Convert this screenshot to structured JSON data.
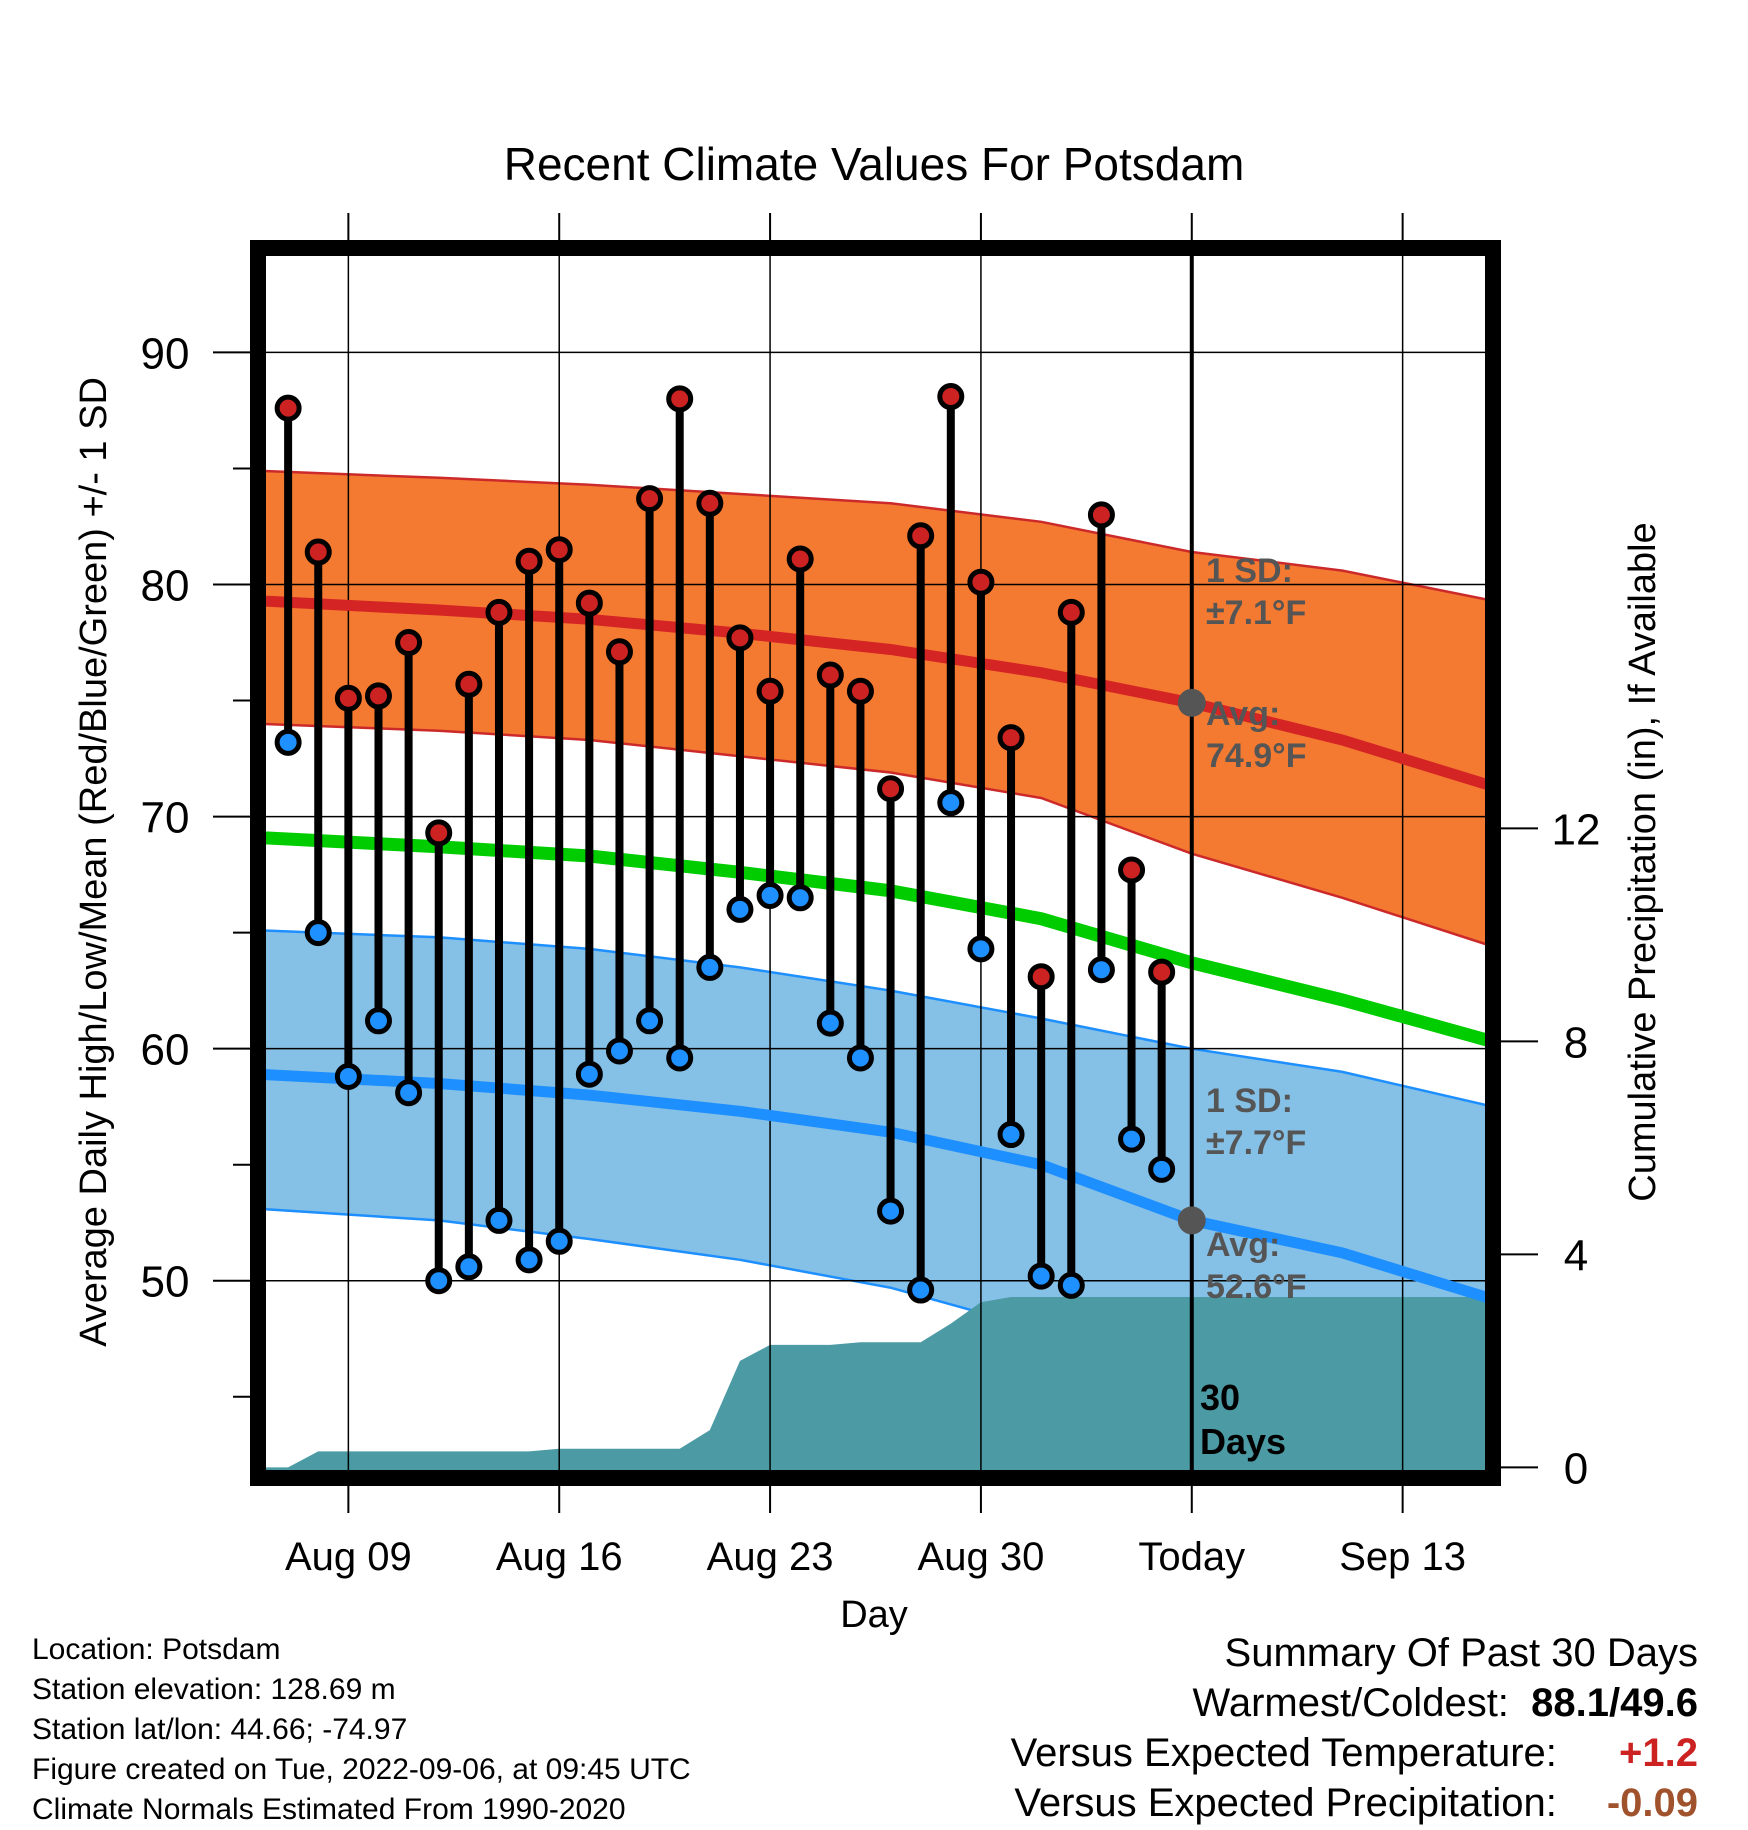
{
  "chart_data": {
    "type": "line",
    "title": "Recent Climate Values For Potsdam",
    "xlabel": "Day",
    "ylabel_left": "Average Daily High/Low/Mean (Red/Blue/Green) +/- 1 SD",
    "ylabel_right": "Cumulative Precipitation (in), If Available",
    "x_ticks": [
      "Aug 09",
      "Aug 16",
      "Aug 23",
      "Aug 30",
      "Today",
      "Sep 13"
    ],
    "y_ticks_left": [
      50,
      60,
      70,
      80,
      90
    ],
    "y_ticks_right": [
      0,
      4,
      8,
      12
    ],
    "ylim_left": [
      41.5,
      94.5
    ],
    "ylim_right": [
      -0.2,
      22.9
    ],
    "xlim_days_from_today": [
      -31,
      10
    ],
    "today_marker_label": "30\nDays",
    "daily_observations": {
      "days_from_today": [
        -30,
        -29,
        -28,
        -27,
        -26,
        -25,
        -24,
        -23,
        -22,
        -21,
        -20,
        -19,
        -18,
        -17,
        -16,
        -15,
        -14,
        -13,
        -12,
        -11,
        -10,
        -9,
        -8,
        -7,
        -6,
        -5,
        -4,
        -3,
        -2,
        -1
      ],
      "high": [
        87.6,
        81.4,
        75.1,
        75.2,
        77.5,
        69.3,
        75.7,
        78.8,
        81.0,
        81.5,
        79.2,
        77.1,
        83.7,
        88.0,
        83.5,
        77.7,
        75.4,
        81.1,
        76.1,
        75.4,
        71.2,
        82.1,
        88.1,
        80.1,
        73.4,
        63.1,
        78.8,
        83.0,
        67.7,
        63.3
      ],
      "low": [
        73.2,
        65.0,
        58.8,
        61.2,
        58.1,
        50.0,
        50.6,
        52.6,
        50.9,
        51.7,
        58.9,
        59.9,
        61.2,
        59.6,
        63.5,
        66.0,
        66.6,
        66.5,
        61.1,
        59.6,
        53.0,
        49.6,
        70.6,
        64.3,
        56.3,
        50.2,
        49.8,
        63.4,
        56.1,
        54.8
      ]
    },
    "normal_high": {
      "avg_today_label": "Avg:\n74.9°F",
      "sd_label": "1 SD:\n±7.1°F",
      "days_from_today": [
        -31,
        -25,
        -20,
        -15,
        -10,
        -5,
        0,
        5,
        10
      ],
      "mean": [
        79.3,
        78.9,
        78.5,
        77.9,
        77.2,
        76.2,
        74.9,
        73.3,
        71.3
      ],
      "upper": [
        84.9,
        84.6,
        84.3,
        83.9,
        83.5,
        82.7,
        81.4,
        80.6,
        79.3
      ],
      "lower": [
        74.0,
        73.7,
        73.3,
        72.6,
        71.9,
        70.8,
        68.4,
        66.5,
        64.4
      ]
    },
    "normal_low": {
      "avg_today_label": "Avg:\n52.6°F",
      "sd_label": "1 SD:\n±7.7°F",
      "days_from_today": [
        -31,
        -25,
        -20,
        -15,
        -10,
        -5,
        0,
        5,
        10
      ],
      "mean": [
        58.9,
        58.5,
        58.0,
        57.3,
        56.4,
        55.0,
        52.6,
        51.2,
        49.2
      ],
      "upper": [
        65.1,
        64.8,
        64.3,
        63.5,
        62.5,
        61.3,
        60.0,
        59.0,
        57.5
      ],
      "lower": [
        53.1,
        52.6,
        51.8,
        50.9,
        49.7,
        47.9,
        46.0,
        44.9,
        43.6
      ]
    },
    "normal_mean": {
      "days_from_today": [
        -31,
        -25,
        -20,
        -15,
        -10,
        -5,
        0,
        5,
        10
      ],
      "mean": [
        69.1,
        68.7,
        68.3,
        67.6,
        66.8,
        65.6,
        63.7,
        62.1,
        60.3
      ]
    },
    "cumulative_precipitation": {
      "days_from_today": [
        -31,
        -30,
        -29,
        -28,
        -27,
        -26,
        -25,
        -24,
        -23,
        -22,
        -21,
        -20,
        -19,
        -18,
        -17,
        -16,
        -15,
        -14,
        -13,
        -12,
        -11,
        -10,
        -9,
        -8,
        -7,
        -6,
        -5,
        -4,
        -3,
        -2,
        -1,
        0,
        10
      ],
      "value": [
        0.0,
        0.0,
        0.3,
        0.3,
        0.3,
        0.3,
        0.3,
        0.3,
        0.3,
        0.3,
        0.35,
        0.35,
        0.35,
        0.35,
        0.35,
        0.7,
        2.0,
        2.3,
        2.3,
        2.3,
        2.35,
        2.35,
        2.35,
        2.7,
        3.1,
        3.2,
        3.2,
        3.2,
        3.2,
        3.2,
        3.2,
        3.2,
        3.2
      ]
    },
    "colors": {
      "high_band": "#f47a31",
      "high_line": "#d42424",
      "high_band_edge": "#cc2a2a",
      "low_band": "#85c0e6",
      "low_line": "#1e8fff",
      "low_band_edge": "#1e8fff",
      "mean_line": "#00cc00",
      "precip_fill": "#4b9aa4",
      "high_dot": "#cc2222",
      "low_dot": "#1e90ff",
      "today_dot": "#555555",
      "sd_label": "#555555"
    },
    "grid": true
  },
  "footer": {
    "location": "Location: Potsdam",
    "elevation": "Station elevation: 128.69 m",
    "latlon": "Station lat/lon: 44.66; -74.97",
    "created": "Figure created on Tue, 2022-09-06, at 09:45 UTC",
    "normals": "Climate Normals Estimated From 1990-2020"
  },
  "summary": {
    "title": "Summary Of Past 30 Days",
    "warm_cold_label": "Warmest/Coldest:",
    "warmest": "88.1",
    "coldest": "49.6",
    "temp_label": "Versus Expected Temperature:",
    "temp_value": "+1.2",
    "temp_color": "#cc2222",
    "precip_label": "Versus Expected Precipitation:",
    "precip_value": "-0.09",
    "precip_color": "#a0522d"
  }
}
